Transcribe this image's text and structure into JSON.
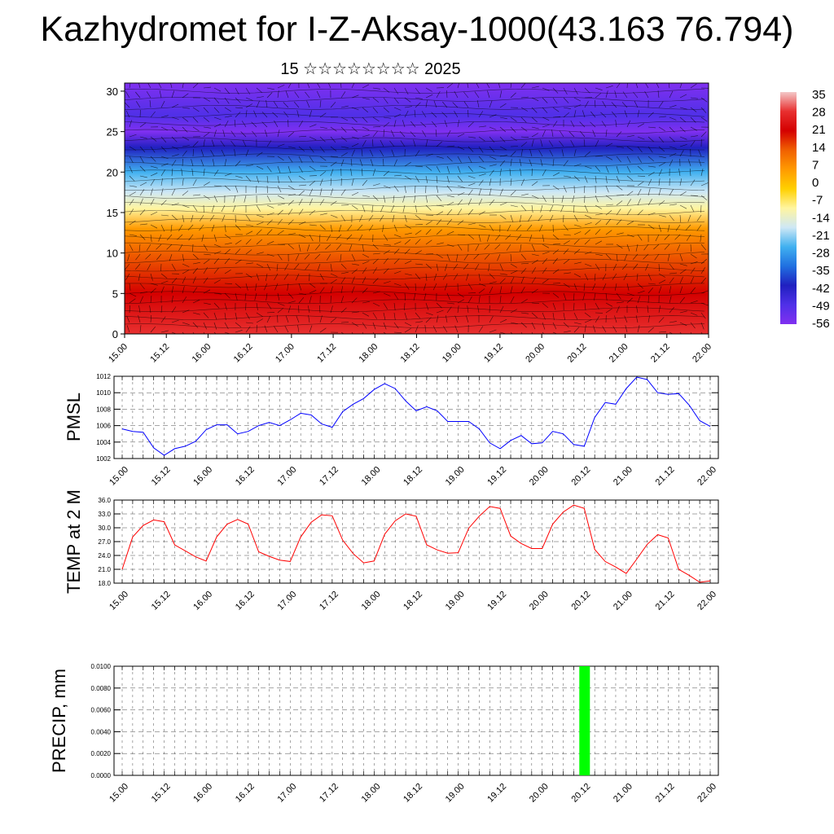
{
  "header": {
    "title": "Kazhydromet for I-Z-Aksay-1000(43.163 76.794)",
    "subtitle": "15 ☆☆☆☆☆☆☆☆ 2025"
  },
  "chart_data": [
    {
      "type": "heatmap",
      "title": "",
      "xlabel": "",
      "ylabel": "",
      "x_ticks": [
        "15.00",
        "15.12",
        "16.00",
        "16.12",
        "17.00",
        "17.12",
        "18.00",
        "18.12",
        "19.00",
        "19.12",
        "20.00",
        "20.12",
        "21.00",
        "21.12",
        "22.00"
      ],
      "y_ticks": [
        0,
        5,
        10,
        15,
        20,
        25,
        30
      ],
      "ylim": [
        0,
        31
      ],
      "colorbar": {
        "labels": [
          35,
          28,
          21,
          14,
          7,
          0,
          -7,
          -14,
          -21,
          -28,
          -35,
          -42,
          -49,
          -56
        ],
        "range": [
          -60,
          38
        ],
        "colors": [
          "#f4c8c8",
          "#e83030",
          "#d40000",
          "#f06000",
          "#ff9a00",
          "#ffd000",
          "#fff5a0",
          "#cfe8f5",
          "#40b0f0",
          "#2070e0",
          "#2020c0",
          "#5030e8",
          "#8030f0"
        ]
      },
      "temperature_profile": [
        {
          "level": 0,
          "temp": 33
        },
        {
          "level": 5,
          "temp": 25
        },
        {
          "level": 10,
          "temp": 16
        },
        {
          "level": 13,
          "temp": 5
        },
        {
          "level": 15.5,
          "temp": -8
        },
        {
          "level": 17.5,
          "temp": -16
        },
        {
          "level": 20,
          "temp": -28
        },
        {
          "level": 23,
          "temp": -45
        },
        {
          "level": 25,
          "temp": -58
        },
        {
          "level": 27,
          "temp": -54
        },
        {
          "level": 31,
          "temp": -56
        }
      ],
      "overlay": "wind vectors and isotherm contours"
    },
    {
      "type": "line",
      "ylabel": "PMSL",
      "xlabel": "",
      "x_ticks": [
        "15.00",
        "15.12",
        "16.00",
        "16.12",
        "17.00",
        "17.12",
        "18.00",
        "18.12",
        "19.00",
        "19.12",
        "20.00",
        "20.12",
        "21.00",
        "21.12",
        "22.00"
      ],
      "y_ticks": [
        "1002",
        "1004",
        "1006",
        "1008",
        "1010",
        "1012"
      ],
      "ylim": [
        1002,
        1012
      ],
      "series": [
        {
          "color": "#0000ff",
          "values": [
            1005.6,
            1005.3,
            1005.2,
            1003.3,
            1002.4,
            1003.2,
            1003.5,
            1004.1,
            1005.5,
            1006.1,
            1006.1,
            1005.0,
            1005.3,
            1006.0,
            1006.4,
            1006.0,
            1006.7,
            1007.5,
            1007.3,
            1006.2,
            1005.8,
            1007.7,
            1008.6,
            1009.3,
            1010.4,
            1011.1,
            1010.5,
            1009.0,
            1007.8,
            1008.3,
            1007.8,
            1006.5,
            1006.5,
            1006.5,
            1005.6,
            1003.9,
            1003.2,
            1004.2,
            1004.8,
            1003.8,
            1003.9,
            1005.3,
            1005.0,
            1003.7,
            1003.5,
            1007.0,
            1008.8,
            1008.6,
            1010.5,
            1011.9,
            1011.6,
            1010.0,
            1009.8,
            1009.9,
            1008.5,
            1006.6,
            1005.9
          ]
        }
      ]
    },
    {
      "type": "line",
      "ylabel": "TEMP at 2 M",
      "xlabel": "",
      "x_ticks": [
        "15.00",
        "15.12",
        "16.00",
        "16.12",
        "17.00",
        "17.12",
        "18.00",
        "18.12",
        "19.00",
        "19.12",
        "20.00",
        "20.12",
        "21.00",
        "21.12",
        "22.00"
      ],
      "y_ticks": [
        "18.0",
        "21.0",
        "24.0",
        "27.0",
        "30.0",
        "33.0",
        "36.0"
      ],
      "ylim": [
        18,
        36
      ],
      "series": [
        {
          "color": "#ff0000",
          "values": [
            21.0,
            28.0,
            30.5,
            31.7,
            31.3,
            26.3,
            25.0,
            23.7,
            22.8,
            28.0,
            30.8,
            31.8,
            30.8,
            24.8,
            23.8,
            23.0,
            22.7,
            28.0,
            31.2,
            32.8,
            32.6,
            27.3,
            24.4,
            22.4,
            22.8,
            28.6,
            31.5,
            33.0,
            32.5,
            26.3,
            25.2,
            24.5,
            24.6,
            29.9,
            32.5,
            34.6,
            34.2,
            28.2,
            26.6,
            25.5,
            25.5,
            30.8,
            33.4,
            34.9,
            34.2,
            25.3,
            22.7,
            21.5,
            20.1,
            23.2,
            26.4,
            28.5,
            27.8,
            21.0,
            19.7,
            18.2,
            18.5
          ]
        }
      ]
    },
    {
      "type": "bar",
      "ylabel": "PRECIP, mm",
      "xlabel": "",
      "x_ticks": [
        "15.00",
        "15.12",
        "16.00",
        "16.12",
        "17.00",
        "17.12",
        "18.00",
        "18.12",
        "19.00",
        "19.12",
        "20.00",
        "20.12",
        "21.00",
        "21.12",
        "22.00"
      ],
      "y_ticks": [
        "0.0000",
        "0.0020",
        "0.0040",
        "0.0060",
        "0.0080",
        "0.0100"
      ],
      "ylim": [
        0,
        0.01
      ],
      "series": [
        {
          "color": "#00ff00",
          "bars": [
            {
              "x": "20.12",
              "value": 0.01
            }
          ]
        }
      ]
    }
  ]
}
